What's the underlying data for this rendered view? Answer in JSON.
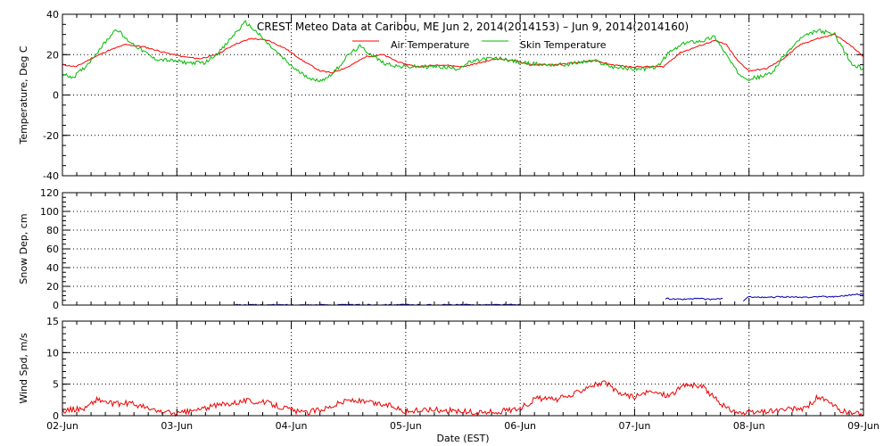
{
  "title": "CREST Meteo Data at Caribou, ME   Jun  2, 2014(2014153) – Jun  9, 2014(2014160)",
  "xlabel": "Date (EST)",
  "x_tick_labels": [
    "02-Jun",
    "03-Jun",
    "04-Jun",
    "05-Jun",
    "06-Jun",
    "07-Jun",
    "08-Jun",
    "09-Jun"
  ],
  "colors": {
    "air": "#ff0000",
    "skin": "#00bb00",
    "snow": "#0000aa",
    "wind": "#ee0000",
    "grid": "#000000"
  },
  "chart_data": [
    {
      "type": "line",
      "ylabel": "Temperature, Deg C",
      "ylim": [
        -40,
        40
      ],
      "y_ticks": [
        -40,
        -20,
        0,
        20,
        40
      ],
      "xlim": [
        0,
        7
      ],
      "grid": true,
      "legend": "top-right",
      "series": [
        {
          "name": "Air Temperature",
          "color_key": "air",
          "points": [
            [
              0,
              15
            ],
            [
              0.12,
              14
            ],
            [
              0.25,
              18
            ],
            [
              0.4,
              22
            ],
            [
              0.55,
              25
            ],
            [
              0.7,
              24
            ],
            [
              0.9,
              21
            ],
            [
              1.05,
              19
            ],
            [
              1.2,
              18
            ],
            [
              1.35,
              20
            ],
            [
              1.5,
              25
            ],
            [
              1.65,
              28
            ],
            [
              1.8,
              27
            ],
            [
              1.95,
              23
            ],
            [
              2.1,
              17
            ],
            [
              2.25,
              12
            ],
            [
              2.35,
              11
            ],
            [
              2.5,
              14
            ],
            [
              2.65,
              19
            ],
            [
              2.8,
              20
            ],
            [
              2.95,
              16
            ],
            [
              3.1,
              14
            ],
            [
              3.3,
              15
            ],
            [
              3.5,
              14
            ],
            [
              3.65,
              16
            ],
            [
              3.8,
              18
            ],
            [
              3.95,
              17
            ],
            [
              4.1,
              15
            ],
            [
              4.3,
              15
            ],
            [
              4.5,
              16
            ],
            [
              4.65,
              17
            ],
            [
              4.8,
              15
            ],
            [
              4.95,
              14
            ],
            [
              5.1,
              14
            ],
            [
              5.25,
              14
            ],
            [
              5.4,
              21
            ],
            [
              5.55,
              24
            ],
            [
              5.7,
              27
            ],
            [
              5.8,
              25
            ],
            [
              5.9,
              17
            ],
            [
              6.0,
              12
            ],
            [
              6.15,
              13
            ],
            [
              6.3,
              18
            ],
            [
              6.45,
              25
            ],
            [
              6.6,
              28
            ],
            [
              6.75,
              30
            ],
            [
              6.9,
              24
            ],
            [
              7.0,
              19
            ]
          ]
        },
        {
          "name": "Skin Temperature",
          "color_key": "skin",
          "points": [
            [
              0,
              10
            ],
            [
              0.1,
              9
            ],
            [
              0.2,
              14
            ],
            [
              0.3,
              21
            ],
            [
              0.4,
              28
            ],
            [
              0.47,
              33
            ],
            [
              0.55,
              28
            ],
            [
              0.65,
              24
            ],
            [
              0.8,
              18
            ],
            [
              0.95,
              17
            ],
            [
              1.1,
              16
            ],
            [
              1.25,
              16
            ],
            [
              1.4,
              23
            ],
            [
              1.5,
              30
            ],
            [
              1.6,
              36
            ],
            [
              1.7,
              31
            ],
            [
              1.8,
              25
            ],
            [
              1.95,
              17
            ],
            [
              2.05,
              12
            ],
            [
              2.15,
              9
            ],
            [
              2.2,
              7
            ],
            [
              2.3,
              8
            ],
            [
              2.4,
              13
            ],
            [
              2.5,
              20
            ],
            [
              2.6,
              24
            ],
            [
              2.7,
              20
            ],
            [
              2.8,
              16
            ],
            [
              2.95,
              14
            ],
            [
              3.1,
              14
            ],
            [
              3.3,
              14
            ],
            [
              3.45,
              13
            ],
            [
              3.55,
              16
            ],
            [
              3.7,
              18
            ],
            [
              3.85,
              18
            ],
            [
              4.0,
              16
            ],
            [
              4.2,
              15
            ],
            [
              4.4,
              15
            ],
            [
              4.5,
              16
            ],
            [
              4.65,
              17
            ],
            [
              4.8,
              14
            ],
            [
              4.95,
              13
            ],
            [
              5.1,
              13
            ],
            [
              5.2,
              14
            ],
            [
              5.3,
              21
            ],
            [
              5.45,
              26
            ],
            [
              5.6,
              27
            ],
            [
              5.7,
              29
            ],
            [
              5.8,
              20
            ],
            [
              5.9,
              11
            ],
            [
              6.0,
              8
            ],
            [
              6.1,
              9
            ],
            [
              6.2,
              11
            ],
            [
              6.3,
              19
            ],
            [
              6.45,
              28
            ],
            [
              6.6,
              32
            ],
            [
              6.75,
              30
            ],
            [
              6.9,
              15
            ],
            [
              7.0,
              13
            ]
          ]
        }
      ]
    },
    {
      "type": "line",
      "ylabel": "Snow Dep, cm",
      "ylim": [
        0,
        120
      ],
      "y_ticks": [
        0,
        20,
        40,
        60,
        80,
        100,
        120
      ],
      "xlim": [
        0,
        7
      ],
      "grid": true,
      "series": [
        {
          "color_key": "snow",
          "points": [
            [
              1.5,
              0.3
            ],
            [
              1.55,
              0.1
            ],
            [
              3.0,
              0.3
            ],
            [
              3.05,
              0.1
            ],
            [
              3.95,
              0.3
            ],
            [
              4.0,
              0.1
            ]
          ]
        },
        {
          "color_key": "snow",
          "points": [
            [
              5.27,
              7
            ],
            [
              5.4,
              6
            ],
            [
              5.55,
              7
            ],
            [
              5.65,
              6
            ],
            [
              5.77,
              7
            ]
          ]
        },
        {
          "color_key": "snow",
          "points": [
            [
              5.95,
              4
            ],
            [
              6.0,
              9
            ],
            [
              6.15,
              8
            ],
            [
              6.3,
              9
            ],
            [
              6.45,
              8
            ],
            [
              6.6,
              9
            ],
            [
              6.75,
              9
            ],
            [
              6.9,
              11
            ],
            [
              7.0,
              12
            ]
          ]
        }
      ]
    },
    {
      "type": "line",
      "ylabel": "Wind Spd, m/s",
      "ylim": [
        0,
        15
      ],
      "y_ticks": [
        0,
        5,
        10,
        15
      ],
      "xlim": [
        0,
        7
      ],
      "grid": true,
      "series": [
        {
          "color_key": "wind",
          "points": [
            [
              0,
              0.8
            ],
            [
              0.2,
              1.2
            ],
            [
              0.3,
              2.6
            ],
            [
              0.45,
              1.8
            ],
            [
              0.6,
              2.0
            ],
            [
              0.8,
              0.8
            ],
            [
              1.0,
              0.3
            ],
            [
              1.15,
              0.8
            ],
            [
              1.4,
              1.8
            ],
            [
              1.6,
              2.4
            ],
            [
              1.8,
              2.0
            ],
            [
              1.95,
              1.2
            ],
            [
              2.1,
              0.4
            ],
            [
              2.3,
              1.2
            ],
            [
              2.5,
              2.5
            ],
            [
              2.7,
              2.0
            ],
            [
              2.9,
              1.5
            ],
            [
              3.0,
              0.6
            ],
            [
              3.2,
              1.0
            ],
            [
              3.4,
              0.8
            ],
            [
              3.6,
              0.5
            ],
            [
              3.8,
              0.6
            ],
            [
              4.0,
              1.2
            ],
            [
              4.15,
              2.8
            ],
            [
              4.3,
              2.5
            ],
            [
              4.45,
              3.2
            ],
            [
              4.6,
              4.8
            ],
            [
              4.75,
              5.2
            ],
            [
              4.85,
              3.6
            ],
            [
              5.0,
              3.0
            ],
            [
              5.15,
              3.8
            ],
            [
              5.3,
              3.2
            ],
            [
              5.45,
              5.0
            ],
            [
              5.6,
              4.5
            ],
            [
              5.7,
              2.8
            ],
            [
              5.8,
              1.2
            ],
            [
              5.95,
              0.3
            ],
            [
              6.1,
              0.6
            ],
            [
              6.3,
              0.9
            ],
            [
              6.5,
              1.2
            ],
            [
              6.6,
              3.0
            ],
            [
              6.7,
              2.0
            ],
            [
              6.8,
              0.8
            ],
            [
              6.9,
              0.4
            ],
            [
              7.0,
              0.2
            ]
          ]
        }
      ]
    }
  ]
}
